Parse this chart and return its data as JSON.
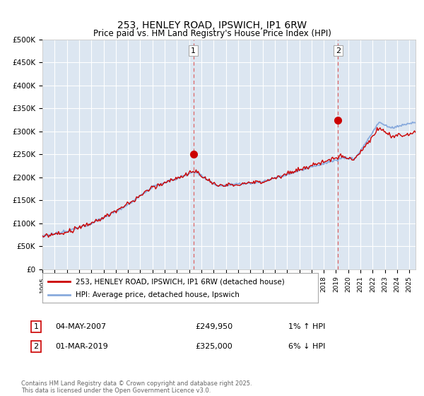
{
  "title": "253, HENLEY ROAD, IPSWICH, IP1 6RW",
  "subtitle": "Price paid vs. HM Land Registry's House Price Index (HPI)",
  "ylabel_ticks": [
    "£0",
    "£50K",
    "£100K",
    "£150K",
    "£200K",
    "£250K",
    "£300K",
    "£350K",
    "£400K",
    "£450K",
    "£500K"
  ],
  "ytick_values": [
    0,
    50000,
    100000,
    150000,
    200000,
    250000,
    300000,
    350000,
    400000,
    450000,
    500000
  ],
  "xlim_start": 1995.0,
  "xlim_end": 2025.5,
  "ylim": [
    0,
    500000
  ],
  "sale1_x": 2007.34,
  "sale1_y": 249950,
  "sale2_x": 2019.17,
  "sale2_y": 325000,
  "annotation1_date": "04-MAY-2007",
  "annotation1_price": "£249,950",
  "annotation1_hpi": "1% ↑ HPI",
  "annotation2_date": "01-MAR-2019",
  "annotation2_price": "£325,000",
  "annotation2_hpi": "6% ↓ HPI",
  "legend_line1": "253, HENLEY ROAD, IPSWICH, IP1 6RW (detached house)",
  "legend_line2": "HPI: Average price, detached house, Ipswich",
  "footer": "Contains HM Land Registry data © Crown copyright and database right 2025.\nThis data is licensed under the Open Government Licence v3.0.",
  "line_color_red": "#cc0000",
  "line_color_blue": "#88aadd",
  "plot_bg_color": "#dce6f1",
  "grid_color": "#ffffff",
  "fig_bg_color": "#ffffff",
  "vline_color": "#dd6666"
}
